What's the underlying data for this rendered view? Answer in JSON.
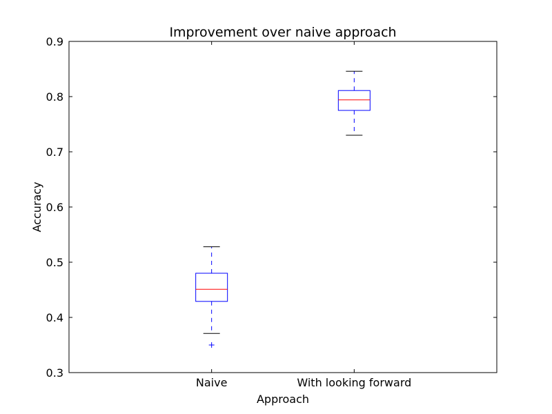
{
  "chart_data": {
    "type": "boxplot",
    "title": "Improvement over naive approach",
    "xlabel": "Approach",
    "ylabel": "Accuracy",
    "ylim": [
      0.3,
      0.9
    ],
    "yticks": [
      "0.3",
      "0.4",
      "0.5",
      "0.6",
      "0.7",
      "0.8",
      "0.9"
    ],
    "grid": false,
    "colors": {
      "box": "#0000ff",
      "median": "#ff0000",
      "whisker": "#0000ff",
      "cap": "#000000",
      "outlier": "#0000ff"
    },
    "boxes": [
      {
        "label": "Naive",
        "whisker_low": 0.371,
        "q1": 0.429,
        "median": 0.451,
        "q3": 0.48,
        "whisker_high": 0.528,
        "outliers": [
          0.35
        ]
      },
      {
        "label": "With looking forward",
        "whisker_low": 0.73,
        "q1": 0.775,
        "median": 0.794,
        "q3": 0.811,
        "whisker_high": 0.846,
        "outliers": []
      }
    ]
  }
}
